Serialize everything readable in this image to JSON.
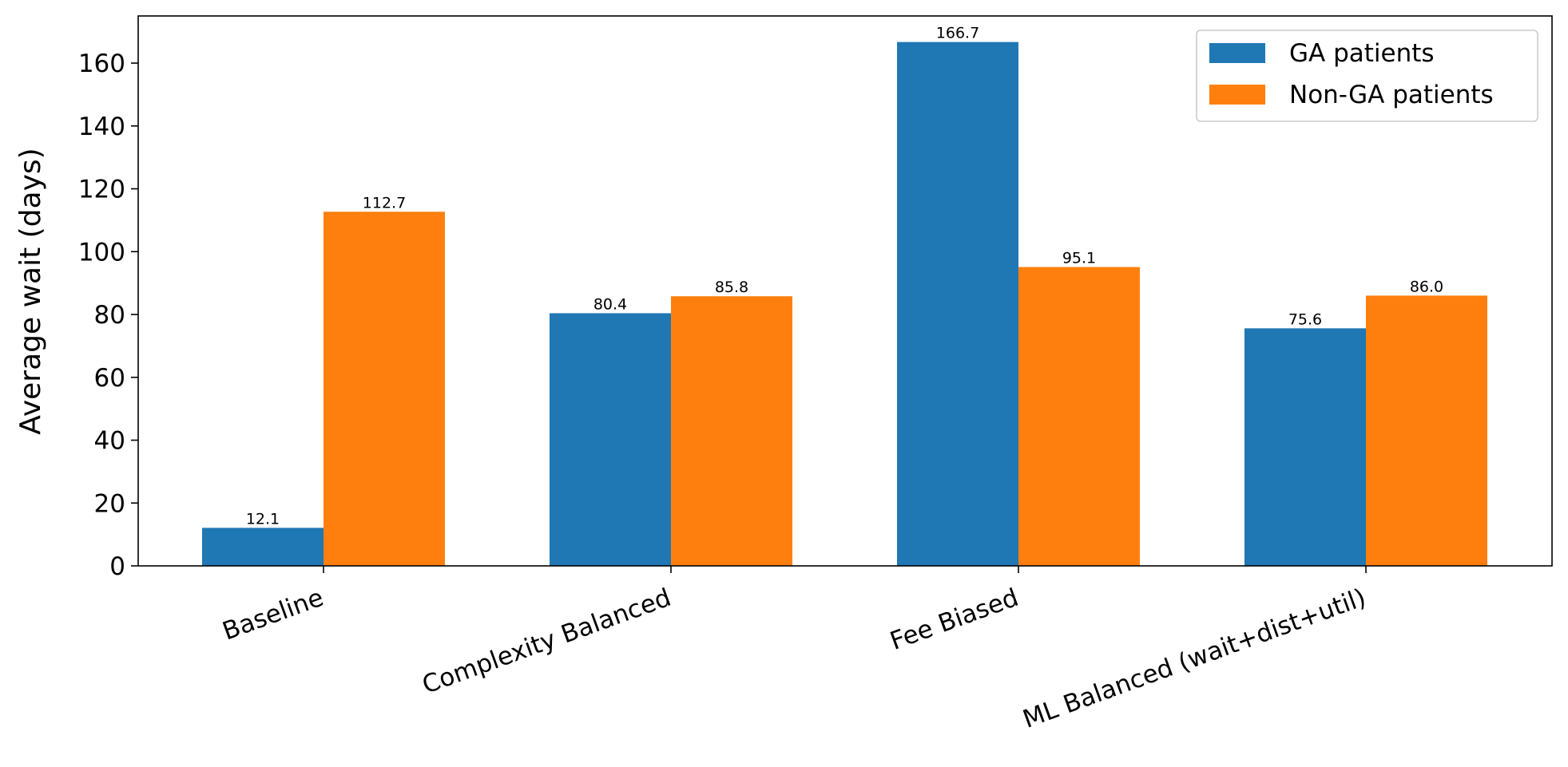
{
  "chart_data": {
    "type": "bar",
    "title": "",
    "xlabel": "",
    "ylabel": "Average wait (days)",
    "categories": [
      "Baseline",
      "Complexity Balanced",
      "Fee Biased",
      "ML Balanced (wait+dist+util)"
    ],
    "series": [
      {
        "name": "GA patients",
        "color": "#1f77b4",
        "values": [
          12.1,
          80.4,
          166.7,
          75.6
        ],
        "labels": [
          "12.1",
          "80.4",
          "166.7",
          "75.6"
        ]
      },
      {
        "name": "Non-GA patients",
        "color": "#ff7f0e",
        "values": [
          112.7,
          85.8,
          95.1,
          86.0
        ],
        "labels": [
          "112.7",
          "85.8",
          "95.1",
          "86.0"
        ]
      }
    ],
    "ylim": [
      0,
      175
    ],
    "yticks": [
      0,
      20,
      40,
      60,
      80,
      100,
      120,
      140,
      160
    ],
    "ytick_labels": [
      "0",
      "20",
      "40",
      "60",
      "80",
      "100",
      "120",
      "140",
      "160"
    ],
    "grid": false,
    "legend_position": "top-right"
  }
}
